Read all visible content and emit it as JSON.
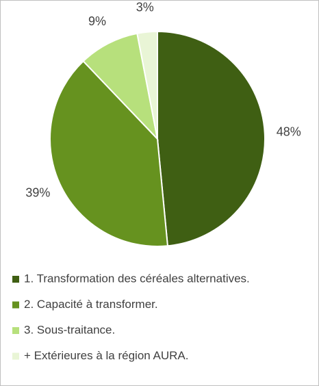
{
  "chart_data": {
    "type": "pie",
    "categories": [
      "1. Transformation des céréales alternatives.",
      "2. Capacité à transformer.",
      "3. Sous-traitance.",
      "+ Extérieures à la région AURA."
    ],
    "values": [
      48,
      39,
      9,
      3
    ],
    "value_labels": [
      "48%",
      "39%",
      "9%",
      "3%"
    ],
    "colors": [
      "#3f5f13",
      "#66921f",
      "#b7e07c",
      "#e9f5d6"
    ]
  }
}
